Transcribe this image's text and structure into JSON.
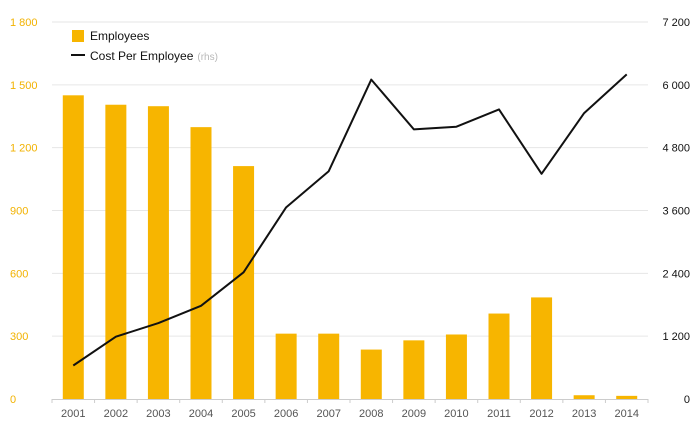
{
  "colors": {
    "bar": "#F7B500",
    "line": "#111111",
    "grid": "#E6E6E6",
    "left_axis": "#F2B200",
    "right_axis": "#111111",
    "x_axis": "#555555",
    "rhs_hint": "#B8B8B8"
  },
  "legend": {
    "bar_label": "Employees",
    "line_label": "Cost Per Employee",
    "line_suffix": "(rhs)"
  },
  "chart_data": {
    "type": "bar",
    "title": "",
    "xlabel": "",
    "categories": [
      "2001",
      "2002",
      "2003",
      "2004",
      "2005",
      "2006",
      "2007",
      "2008",
      "2009",
      "2010",
      "2011",
      "2012",
      "2013",
      "2014"
    ],
    "series": [
      {
        "name": "Employees",
        "type": "bar",
        "axis": "left",
        "values": [
          1450,
          1405,
          1398,
          1298,
          1112,
          312,
          312,
          236,
          280,
          308,
          408,
          485,
          18,
          15
        ]
      },
      {
        "name": "Cost Per Employee",
        "type": "line",
        "axis": "right",
        "values": [
          640,
          1190,
          1450,
          1780,
          2420,
          3660,
          4350,
          6100,
          5150,
          5200,
          5530,
          4300,
          5460,
          6200
        ]
      }
    ],
    "y_left": {
      "ylim": [
        0,
        1800
      ],
      "ticks": [
        0,
        300,
        600,
        900,
        1200,
        1500,
        1800
      ],
      "tick_labels": [
        "0",
        "300",
        "600",
        "900",
        "1 200",
        "1 500",
        "1 800"
      ]
    },
    "y_right": {
      "ylim": [
        0,
        7200
      ],
      "ticks": [
        0,
        1200,
        2400,
        3600,
        4800,
        6000,
        7200
      ],
      "tick_labels": [
        "0",
        "1 200",
        "2 400",
        "3 600",
        "4 800",
        "6 000",
        "7 200"
      ]
    },
    "grid": true,
    "legend_position": "top-left"
  }
}
